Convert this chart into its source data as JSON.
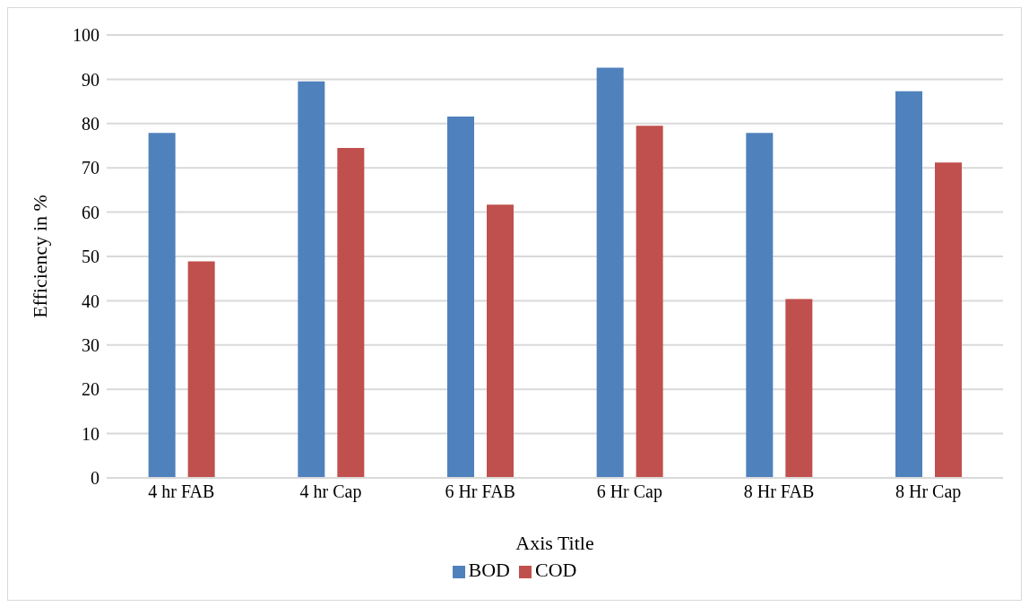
{
  "chart_data": {
    "type": "bar",
    "xlabel": "Axis Title",
    "ylabel": "Efficiency in %",
    "categories": [
      "4 hr FAB",
      "4 hr Cap",
      "6 Hr FAB",
      "6 Hr Cap",
      "8 Hr FAB",
      "8 Hr Cap"
    ],
    "series": [
      {
        "name": "BOD",
        "color": "#4f81bd",
        "values": [
          77.9,
          89.5,
          81.6,
          92.6,
          77.9,
          87.3
        ]
      },
      {
        "name": "COD",
        "color": "#c0504d",
        "values": [
          48.9,
          74.5,
          61.7,
          79.5,
          40.4,
          71.2
        ]
      }
    ],
    "ylim": [
      0,
      100
    ],
    "yticks": [
      0,
      10,
      20,
      30,
      40,
      50,
      60,
      70,
      80,
      90,
      100
    ],
    "grid": "y",
    "legend": "bottom"
  }
}
